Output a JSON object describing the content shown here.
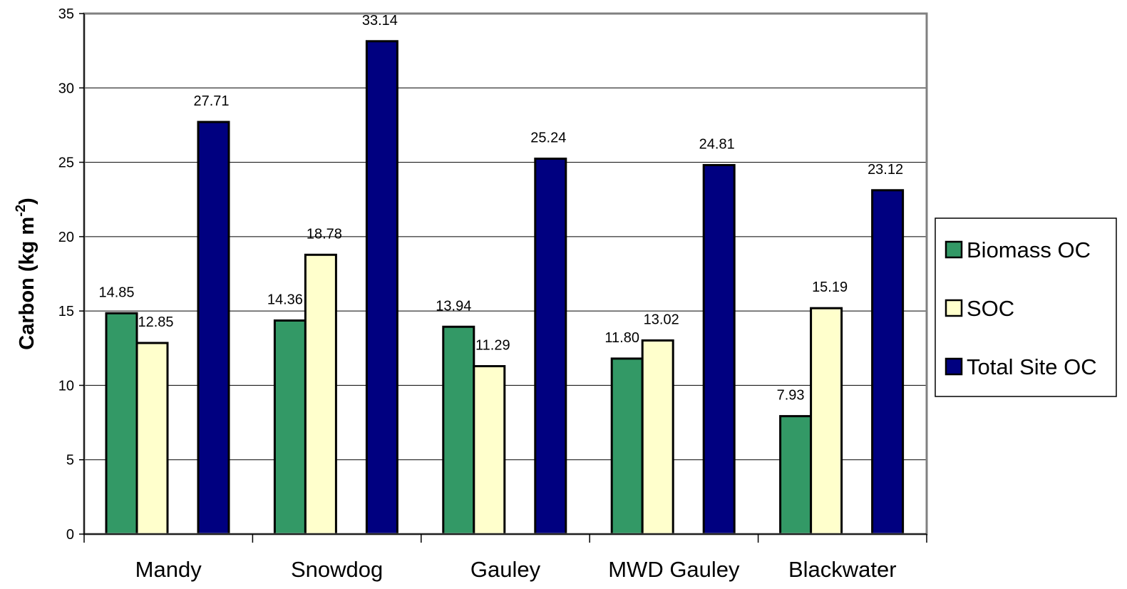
{
  "chart_data": {
    "type": "bar",
    "categories": [
      "Mandy",
      "Snowdog",
      "Gauley",
      "MWD Gauley",
      "Blackwater"
    ],
    "series": [
      {
        "name": "Biomass OC",
        "values": [
          14.85,
          14.36,
          13.94,
          11.8,
          7.93
        ],
        "labels": [
          "14.85",
          "14.36",
          "13.94",
          "11.80",
          "7.93"
        ],
        "color": "#339966"
      },
      {
        "name": "SOC",
        "values": [
          12.85,
          18.78,
          11.29,
          13.02,
          15.19
        ],
        "labels": [
          "12.85",
          "18.78",
          "11.29",
          "13.02",
          "15.19"
        ],
        "color": "#FFFFCC"
      },
      {
        "name": "Total Site OC",
        "values": [
          27.71,
          33.14,
          25.24,
          24.81,
          23.12
        ],
        "labels": [
          "27.71",
          "33.14",
          "25.24",
          "24.81",
          "23.12"
        ],
        "color": "#000080"
      }
    ],
    "ylabel": "Carbon (kg m",
    "ylabel_sup": "-2",
    "ylabel_close": ")",
    "ylim": [
      0,
      35
    ],
    "yticks": [
      "0",
      "5",
      "10",
      "15",
      "20",
      "25",
      "30",
      "35"
    ],
    "grid": true,
    "legend_position": "right"
  }
}
